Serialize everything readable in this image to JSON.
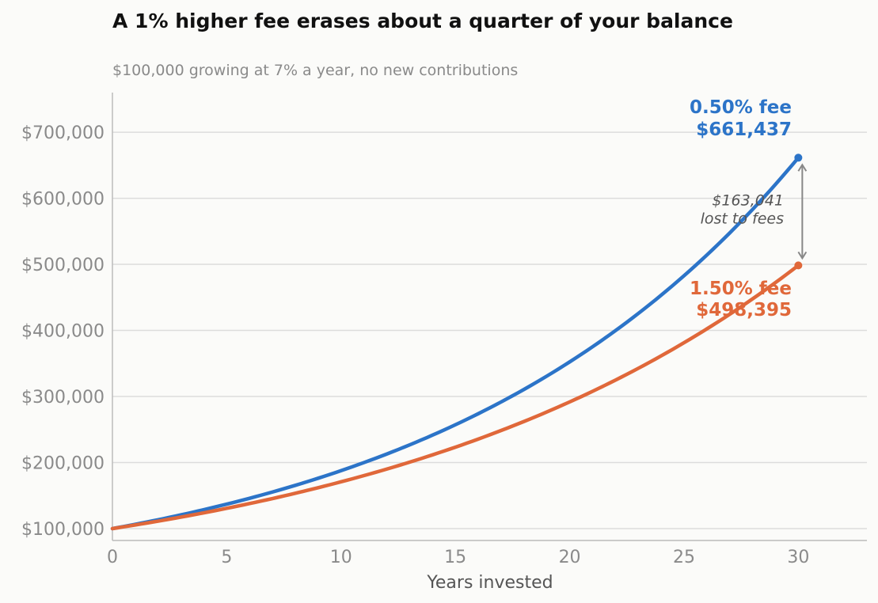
{
  "chart_data": {
    "type": "line",
    "title": "A 1% higher fee erases about a quarter of your balance",
    "subtitle": "$100,000 growing at 7% a year, no new contributions",
    "xlabel": "Years invested",
    "ylabel": "",
    "xlim": [
      0,
      33
    ],
    "ylim": [
      82000,
      760000
    ],
    "x_ticks": [
      0,
      5,
      10,
      15,
      20,
      25,
      30
    ],
    "y_ticks": [
      100000,
      200000,
      300000,
      400000,
      500000,
      600000,
      700000
    ],
    "y_tick_labels": [
      "$100,000",
      "$200,000",
      "$300,000",
      "$400,000",
      "$500,000",
      "$600,000",
      "$700,000"
    ],
    "grid": "horizontal",
    "legend": "none",
    "series": [
      {
        "name": "0.50% fee",
        "color": "#2c74c8",
        "start": 100000,
        "annual_rate": 0.065,
        "years": [
          0,
          30
        ],
        "end_value": 661437,
        "label_lines": [
          "0.50% fee",
          "$661,437"
        ]
      },
      {
        "name": "1.50% fee",
        "color": "#e0683a",
        "start": 100000,
        "annual_rate": 0.055,
        "years": [
          0,
          30
        ],
        "end_value": 498395,
        "label_lines": [
          "1.50% fee",
          "$498,395"
        ]
      }
    ],
    "annotation": {
      "x": 30,
      "from": 498395,
      "to": 661437,
      "text_lines": [
        "$163,041",
        "lost to fees"
      ],
      "color": "#888888"
    }
  }
}
